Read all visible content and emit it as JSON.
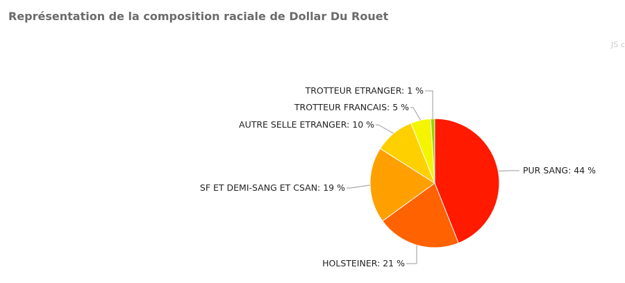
{
  "title": "Représentation de la composition raciale de Dollar Du Rouet",
  "credit_text": "JS c",
  "chart_data": {
    "type": "pie",
    "title": "Représentation de la composition raciale de Dollar Du Rouet",
    "unit": "%",
    "slices": [
      {
        "label": "PUR SANG",
        "value": 44,
        "color": "#ff1a00",
        "display": "PUR SANG: 44 %"
      },
      {
        "label": "HOLSTEINER",
        "value": 21,
        "color": "#ff6200",
        "display": "HOLSTEINER: 21 %"
      },
      {
        "label": "SF ET DEMI-SANG ET CSAN",
        "value": 19,
        "color": "#ffa000",
        "display": "SF ET DEMI-SANG ET CSAN: 19 %"
      },
      {
        "label": "AUTRE SELLE ETRANGER",
        "value": 10,
        "color": "#ffd000",
        "display": "AUTRE SELLE ETRANGER: 10 %"
      },
      {
        "label": "TROTTEUR FRANCAIS",
        "value": 5,
        "color": "#f5f500",
        "display": "TROTTEUR FRANCAIS: 5 %"
      },
      {
        "label": "TROTTEUR ETRANGER",
        "value": 1,
        "color": "#8fd400",
        "display": "TROTTEUR ETRANGER: 1 %"
      }
    ]
  }
}
